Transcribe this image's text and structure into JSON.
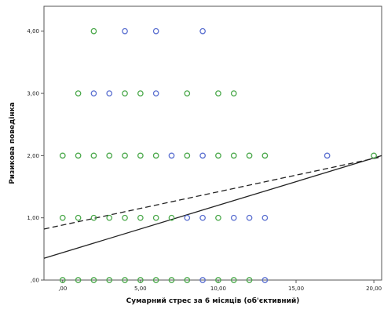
{
  "chart_data": {
    "type": "scatter",
    "xlabel": "Сумарний стрес за 6 місяців (об'єктивний)",
    "ylabel": "Ризикова поведінка",
    "xlim": [
      -1.2,
      20.5
    ],
    "ylim": [
      0,
      4.4
    ],
    "x_ticks": [
      {
        "value": 0,
        "label": ",00"
      },
      {
        "value": 5,
        "label": "5,00"
      },
      {
        "value": 10,
        "label": "10,00"
      },
      {
        "value": 15,
        "label": "15,00"
      },
      {
        "value": 20,
        "label": "20,00"
      }
    ],
    "y_ticks": [
      {
        "value": 0,
        "label": ",00"
      },
      {
        "value": 1,
        "label": "1,00"
      },
      {
        "value": 2,
        "label": "2,00"
      },
      {
        "value": 3,
        "label": "3,00"
      },
      {
        "value": 4,
        "label": "4,00"
      }
    ],
    "grid": false,
    "series": [
      {
        "color": "#4aa84a",
        "marker": "open-circle",
        "points": [
          [
            0,
            0
          ],
          [
            1,
            0
          ],
          [
            2,
            0
          ],
          [
            3,
            0
          ],
          [
            4,
            0
          ],
          [
            5,
            0
          ],
          [
            6,
            0
          ],
          [
            7,
            0
          ],
          [
            8,
            0
          ],
          [
            10,
            0
          ],
          [
            11,
            0
          ],
          [
            12,
            0
          ],
          [
            0,
            1
          ],
          [
            1,
            1
          ],
          [
            2,
            1
          ],
          [
            3,
            1
          ],
          [
            4,
            1
          ],
          [
            5,
            1
          ],
          [
            6,
            1
          ],
          [
            7,
            1
          ],
          [
            10,
            1
          ],
          [
            0,
            2
          ],
          [
            1,
            2
          ],
          [
            2,
            2
          ],
          [
            3,
            2
          ],
          [
            4,
            2
          ],
          [
            5,
            2
          ],
          [
            6,
            2
          ],
          [
            8,
            2
          ],
          [
            10,
            2
          ],
          [
            11,
            2
          ],
          [
            12,
            2
          ],
          [
            13,
            2
          ],
          [
            20,
            2
          ],
          [
            1,
            3
          ],
          [
            4,
            3
          ],
          [
            5,
            3
          ],
          [
            8,
            3
          ],
          [
            10,
            3
          ],
          [
            11,
            3
          ],
          [
            2,
            4
          ]
        ]
      },
      {
        "color": "#5a6fd0",
        "marker": "open-circle",
        "points": [
          [
            9,
            0
          ],
          [
            13,
            0
          ],
          [
            8,
            1
          ],
          [
            9,
            1
          ],
          [
            11,
            1
          ],
          [
            12,
            1
          ],
          [
            13,
            1
          ],
          [
            7,
            2
          ],
          [
            9,
            2
          ],
          [
            17,
            2
          ],
          [
            2,
            3
          ],
          [
            3,
            3
          ],
          [
            6,
            3
          ],
          [
            4,
            4
          ],
          [
            6,
            4
          ],
          [
            9,
            4
          ]
        ]
      }
    ],
    "fit_lines": [
      {
        "style": "solid",
        "color": "#222222",
        "from": [
          -1.2,
          0.35
        ],
        "to": [
          20.5,
          2.0
        ]
      },
      {
        "style": "dashed",
        "color": "#222222",
        "from": [
          -1.2,
          0.82
        ],
        "to": [
          20.5,
          1.98
        ]
      }
    ]
  }
}
